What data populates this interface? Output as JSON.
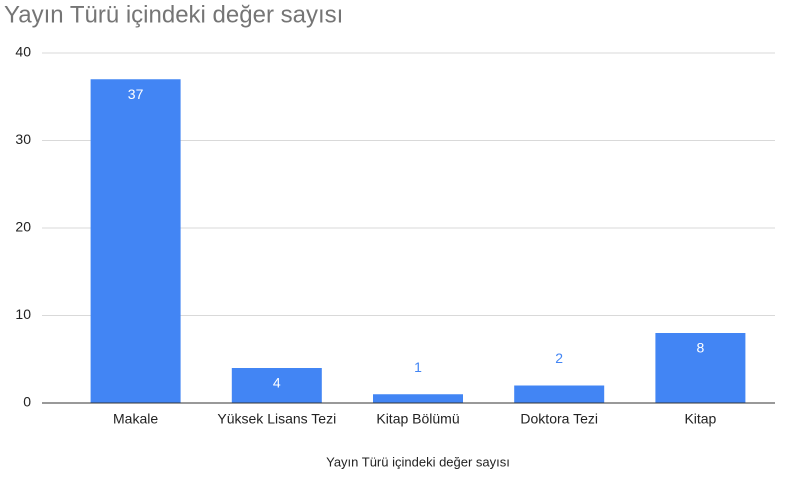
{
  "chart_data": {
    "type": "bar",
    "title": "Yayın Türü içindeki değer sayısı",
    "x_label": "Yayın Türü içindeki değer sayısı",
    "categories": [
      "Makale",
      "Yüksek Lisans Tezi",
      "Kitap Bölümü",
      "Doktora Tezi",
      "Kitap"
    ],
    "values": [
      37,
      4,
      1,
      2,
      8
    ],
    "color": "#4285f4",
    "ylim": [
      0,
      40
    ],
    "yticks": [
      0,
      10,
      20,
      30,
      40
    ],
    "grid": true
  }
}
